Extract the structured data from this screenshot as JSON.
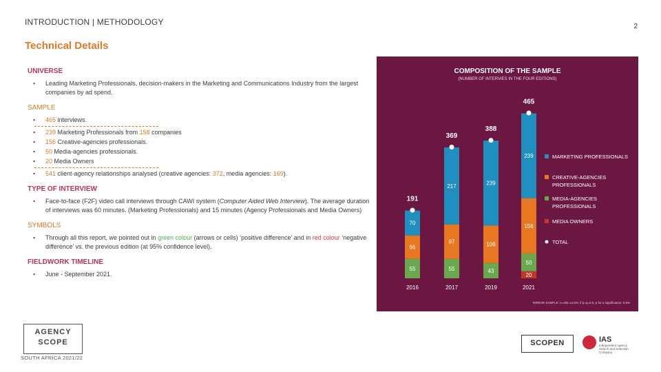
{
  "header": {
    "breadcrumb": "INTRODUCTION | METHODOLOGY",
    "page_number": "2",
    "title": "Technical  Details"
  },
  "universe": {
    "heading": "UNIVERSE",
    "text": "Leading Marketing Professionals, decision-makers in the Marketing and Communications Industry from the largest companies by ad spend."
  },
  "sample": {
    "heading": "SAMPLE",
    "interviews_num": "465",
    "interviews_text": " interviews.",
    "mp_num": "239",
    "mp_text_a": " Marketing Professionals from ",
    "mp_companies": "158",
    "mp_text_b": " companies",
    "creative_num": "156",
    "creative_text": " Creative-agencies professionals.",
    "media_num": "50",
    "media_text": " Media-agencies professionals.",
    "owners_num": "20",
    "owners_text": " Media Owners",
    "rel_num": "541",
    "rel_text_a": " client-agency relationships analysed (creative agencies: ",
    "rel_creative": "372",
    "rel_text_b": ", media agencies: ",
    "rel_media": "169",
    "rel_text_c": ")."
  },
  "interview": {
    "heading": "TYPE OF INTERVIEW",
    "text_a": "Face-to-face (F2F) video call interviews through CAWI system (",
    "text_italic": "Computer Aided Web Interview",
    "text_b": "). The average duration of interviews was 60 minutes. (Marketing Professionals) and 15 minutes (Agency Professionals and Media Owners)"
  },
  "symbols": {
    "heading": "SYMBOLS",
    "text_a": "Through all this report, we pointed out in ",
    "green": "green colour",
    "text_b": " (arrows or cells) ‘positive difference’ and in ",
    "red": "red colour",
    "text_c": " ‘negative difference’ vs. the previous edition (at 95% confidence level)."
  },
  "fieldwork": {
    "heading": "FIELDWORK TIMELINE",
    "text": "June - September 2021."
  },
  "chart_data": {
    "type": "bar",
    "stacked": true,
    "title": "COMPOSITION  OF THE SAMPLE",
    "subtitle": "(NUMBER OF INTERVIES IN THE FOUR EDITIONS)",
    "categories": [
      "2016",
      "2017",
      "2019",
      "2021"
    ],
    "series": [
      {
        "name": "MEDIA OWNERS",
        "color": "#c0392b",
        "values": [
          0,
          0,
          0,
          20
        ]
      },
      {
        "name": "MEDIA-AGENCIES PROFESSIONALS",
        "color": "#6aa84f",
        "values": [
          55,
          55,
          43,
          50
        ]
      },
      {
        "name": "CREATIVE-AGENCIES PROFESSIONALS",
        "color": "#e87722",
        "values": [
          66,
          97,
          106,
          156
        ]
      },
      {
        "name": "MARKETING PROFESSIONALS",
        "color": "#1f8fc0",
        "values": [
          70,
          217,
          239,
          239
        ]
      }
    ],
    "totals": [
      191,
      369,
      388,
      465
    ],
    "total_label": "TOTAL",
    "legend_order": [
      "MARKETING PROFESSIONALS",
      "CREATIVE-AGENCIES PROFESSIONALS",
      "MEDIA-AGENCIES PROFESSIONALS",
      "MEDIA OWNERS",
      "TOTAL"
    ],
    "legend_placement": "right",
    "grid": false,
    "footnote": "*ERROR SAMPLE: n=465 ±4.6%; if p=q=0.5; p for a significance: 0.5%"
  },
  "logos": {
    "agency_line1": "AGENCY",
    "agency_line2": "SCOPE",
    "region": "SOUTH AFRICA 2021/22",
    "scopen": "SCOPEN",
    "ias": "IAS",
    "ias_sub": "Independent Agency Search and Selection Company"
  }
}
